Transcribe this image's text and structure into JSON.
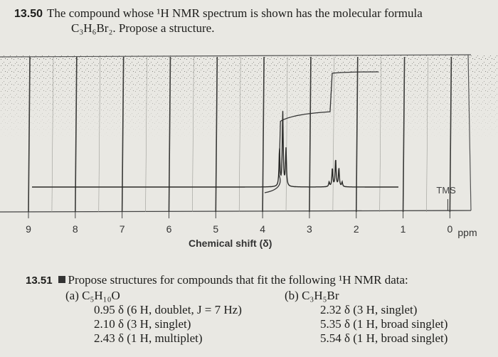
{
  "problem_1350": {
    "number": "13.50",
    "line1": "The compound whose ¹H NMR spectrum is shown has the molecular formula",
    "line2": "C₃H₆Br₂. Propose a structure."
  },
  "chart_data": {
    "type": "line",
    "title": "",
    "xlabel": "Chemical shift (δ)",
    "x_unit_label": "ppm",
    "xlim": [
      9.6,
      -0.6
    ],
    "x_ticks": [
      9,
      8,
      7,
      6,
      5,
      4,
      3,
      2,
      1,
      0
    ],
    "tick_labels": [
      "9",
      "8",
      "7",
      "6",
      "5",
      "4",
      "3",
      "2",
      "1",
      "0"
    ],
    "reference_label": "TMS",
    "series": [
      {
        "peaks": [
          {
            "shift": 3.52,
            "multiplicity": "triplet",
            "relative_area": 4
          },
          {
            "shift": 2.38,
            "multiplicity": "quintet",
            "relative_area": 2
          }
        ]
      }
    ],
    "integral_steps": [
      {
        "from": 3.4,
        "to": 3.6,
        "level_before": 0.0,
        "level_after": 0.67
      },
      {
        "from": 2.3,
        "to": 2.5,
        "level_before": 0.67,
        "level_after": 1.0
      }
    ]
  },
  "problem_1351": {
    "number": "13.51",
    "prompt": "Propose structures for compounds that fit the following ¹H NMR data:",
    "a": {
      "label": "(a) C₅H₁₀O",
      "lines": [
        "0.95 δ (6 H, doublet, J = 7 Hz)",
        "2.10 δ (3 H, singlet)",
        "2.43 δ (1 H, multiplet)"
      ]
    },
    "b": {
      "label": "(b) C₃H₅Br",
      "lines": [
        "2.32 δ (3 H, singlet)",
        "5.35 δ (1 H, broad singlet)",
        "5.54 δ (1 H, broad singlet)"
      ]
    }
  }
}
